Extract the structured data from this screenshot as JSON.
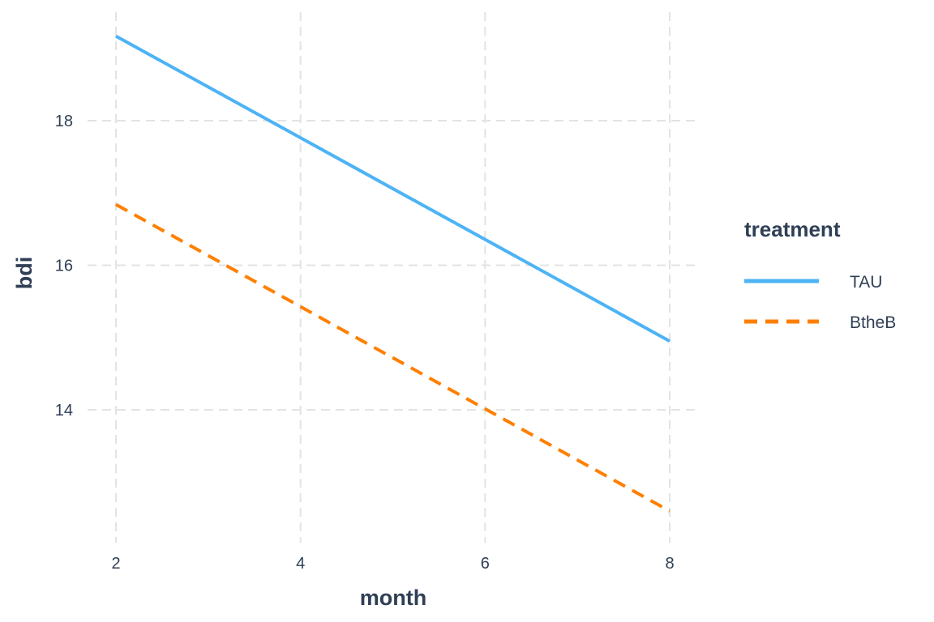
{
  "chart_data": {
    "type": "line",
    "xlabel": "month",
    "ylabel": "bdi",
    "xlim": [
      1.9,
      8.3
    ],
    "ylim": [
      12.4,
      19.6
    ],
    "x_ticks": [
      2,
      4,
      6,
      8
    ],
    "y_ticks": [
      14,
      16,
      18
    ],
    "grid": true,
    "legend": {
      "title": "treatment",
      "placement": "right"
    },
    "series": [
      {
        "name": "TAU",
        "color": "#4db3f5",
        "dash": "solid",
        "x": [
          2,
          8
        ],
        "y": [
          19.17,
          14.95
        ]
      },
      {
        "name": "BtheB",
        "color": "#ff7f00",
        "dash": "dashed",
        "x": [
          2,
          8
        ],
        "y": [
          16.84,
          12.6
        ]
      }
    ]
  }
}
